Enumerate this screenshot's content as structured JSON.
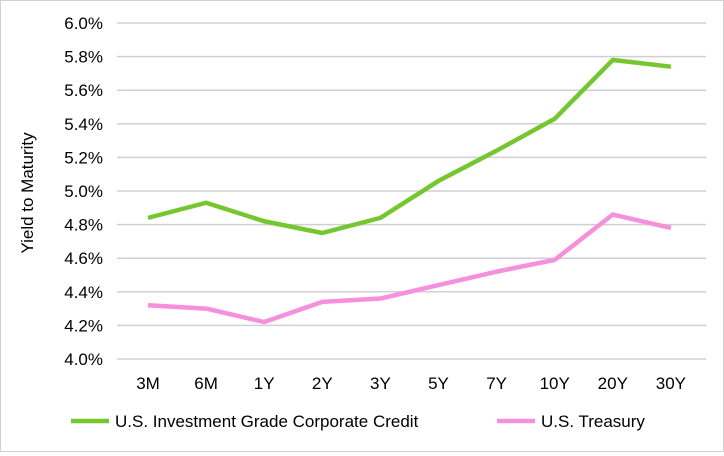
{
  "chart_data": {
    "type": "line",
    "title": "",
    "xlabel": "",
    "ylabel": "Yield to Maturity",
    "categories": [
      "3M",
      "6M",
      "1Y",
      "2Y",
      "3Y",
      "5Y",
      "7Y",
      "10Y",
      "20Y",
      "30Y"
    ],
    "ylim": [
      4.0,
      6.0
    ],
    "yticks": [
      4.0,
      4.2,
      4.4,
      4.6,
      4.8,
      5.0,
      5.2,
      5.4,
      5.6,
      5.8,
      6.0
    ],
    "ytick_labels": [
      "4.0%",
      "4.2%",
      "4.4%",
      "4.6%",
      "4.8%",
      "5.0%",
      "5.2%",
      "5.4%",
      "5.6%",
      "5.8%",
      "6.0%"
    ],
    "grid": true,
    "legend_position": "bottom",
    "series": [
      {
        "name": "U.S. Investment Grade Corporate Credit",
        "color": "#76c72f",
        "values": [
          4.84,
          4.93,
          4.82,
          4.75,
          4.84,
          5.06,
          5.24,
          5.43,
          5.78,
          5.74
        ]
      },
      {
        "name": "U.S. Treasury",
        "color": "#f590dc",
        "values": [
          4.32,
          4.3,
          4.22,
          4.34,
          4.36,
          4.44,
          4.52,
          4.59,
          4.86,
          4.78
        ]
      }
    ]
  }
}
